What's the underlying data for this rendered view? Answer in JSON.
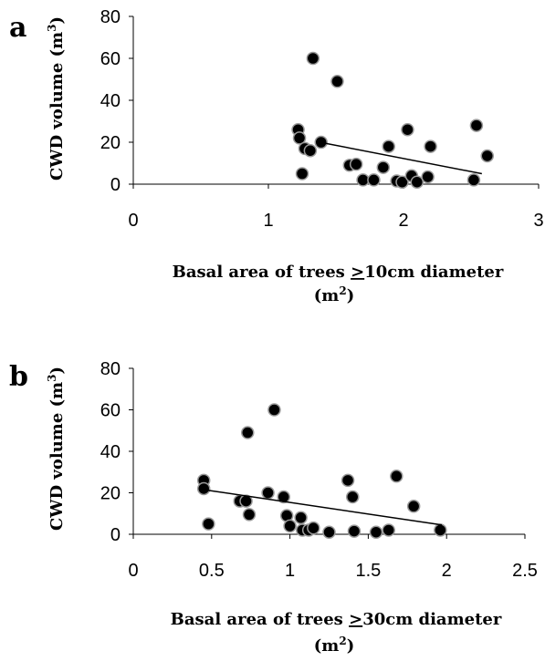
{
  "chart_data": [
    {
      "type": "scatter",
      "panel_label": "a",
      "xlabel_line1_pre": "Basal area of trees ",
      "xlabel_line1_ge": ">",
      "xlabel_line1_post": "10cm diameter",
      "xlabel_line2_base": "(m",
      "xlabel_line2_sup": "2",
      "xlabel_line2_close": ")",
      "ylabel_base": "CWD volume (m",
      "ylabel_sup": "3",
      "ylabel_close": ")",
      "xlim": [
        0,
        3
      ],
      "ylim": [
        0,
        80
      ],
      "x_ticks": [
        "0",
        "1",
        "2",
        "3"
      ],
      "x_tick_values": [
        0,
        1,
        2,
        3
      ],
      "y_ticks": [
        "0",
        "20",
        "40",
        "60",
        "80"
      ],
      "y_tick_values": [
        0,
        20,
        40,
        60,
        80
      ],
      "grid": false,
      "trendline": {
        "x": [
          1.38,
          2.58
        ],
        "y": [
          20.0,
          5.0
        ]
      },
      "points": [
        {
          "x": 1.22,
          "y": 26
        },
        {
          "x": 1.23,
          "y": 22
        },
        {
          "x": 1.25,
          "y": 5
        },
        {
          "x": 1.27,
          "y": 17
        },
        {
          "x": 1.31,
          "y": 16
        },
        {
          "x": 1.33,
          "y": 60
        },
        {
          "x": 1.39,
          "y": 20
        },
        {
          "x": 1.51,
          "y": 49
        },
        {
          "x": 1.6,
          "y": 9
        },
        {
          "x": 1.65,
          "y": 9.5
        },
        {
          "x": 1.7,
          "y": 2
        },
        {
          "x": 1.78,
          "y": 2
        },
        {
          "x": 1.85,
          "y": 8
        },
        {
          "x": 1.89,
          "y": 18
        },
        {
          "x": 1.95,
          "y": 1.5
        },
        {
          "x": 1.99,
          "y": 1
        },
        {
          "x": 2.03,
          "y": 26
        },
        {
          "x": 2.06,
          "y": 4
        },
        {
          "x": 2.1,
          "y": 1
        },
        {
          "x": 2.18,
          "y": 3.5
        },
        {
          "x": 2.2,
          "y": 18
        },
        {
          "x": 2.52,
          "y": 2
        },
        {
          "x": 2.54,
          "y": 28
        },
        {
          "x": 2.62,
          "y": 13.5
        }
      ]
    },
    {
      "type": "scatter",
      "panel_label": "b",
      "xlabel_line1_pre": "Basal area of trees ",
      "xlabel_line1_ge": ">",
      "xlabel_line1_post": "30cm diameter",
      "xlabel_line2_base": "(m",
      "xlabel_line2_sup": "2",
      "xlabel_line2_close": ")",
      "ylabel_base": "CWD volume (m",
      "ylabel_sup": "3",
      "ylabel_close": ")",
      "xlim": [
        0,
        2.5
      ],
      "ylim": [
        0,
        80
      ],
      "x_ticks": [
        "0",
        "0.5",
        "1",
        "1.5",
        "2",
        "2.5"
      ],
      "x_tick_values": [
        0,
        0.5,
        1,
        1.5,
        2,
        2.5
      ],
      "y_ticks": [
        "0",
        "20",
        "40",
        "60",
        "80"
      ],
      "y_tick_values": [
        0,
        20,
        40,
        60,
        80
      ],
      "grid": false,
      "trendline": {
        "x": [
          0.45,
          1.97
        ],
        "y": [
          21.5,
          4.5
        ]
      },
      "points": [
        {
          "x": 0.45,
          "y": 26
        },
        {
          "x": 0.45,
          "y": 22
        },
        {
          "x": 0.48,
          "y": 5
        },
        {
          "x": 0.68,
          "y": 16
        },
        {
          "x": 0.72,
          "y": 16
        },
        {
          "x": 0.73,
          "y": 49
        },
        {
          "x": 0.74,
          "y": 9.5
        },
        {
          "x": 0.86,
          "y": 20
        },
        {
          "x": 0.9,
          "y": 60
        },
        {
          "x": 0.96,
          "y": 18
        },
        {
          "x": 0.98,
          "y": 9
        },
        {
          "x": 1.0,
          "y": 4
        },
        {
          "x": 1.07,
          "y": 8
        },
        {
          "x": 1.08,
          "y": 2
        },
        {
          "x": 1.12,
          "y": 2
        },
        {
          "x": 1.15,
          "y": 3
        },
        {
          "x": 1.25,
          "y": 1
        },
        {
          "x": 1.37,
          "y": 26
        },
        {
          "x": 1.4,
          "y": 18
        },
        {
          "x": 1.41,
          "y": 1.5
        },
        {
          "x": 1.55,
          "y": 1
        },
        {
          "x": 1.63,
          "y": 2
        },
        {
          "x": 1.68,
          "y": 28
        },
        {
          "x": 1.79,
          "y": 13.5
        },
        {
          "x": 1.96,
          "y": 2
        }
      ]
    }
  ]
}
